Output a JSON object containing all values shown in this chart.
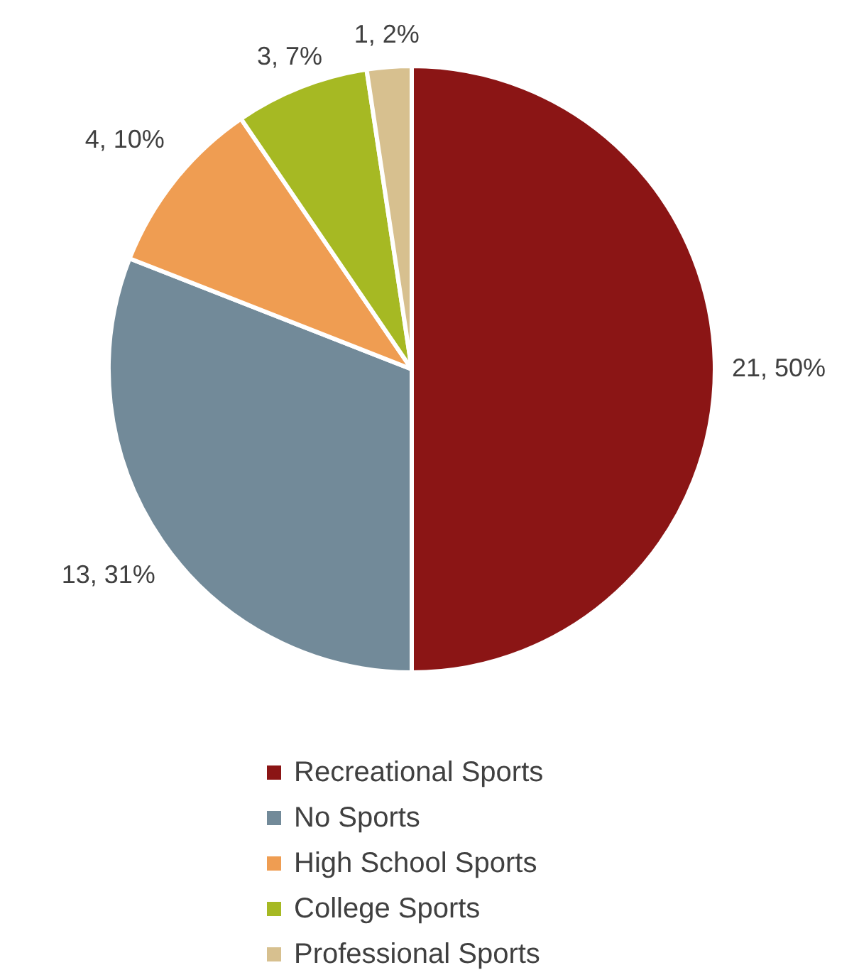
{
  "chart_data": {
    "type": "pie",
    "categories": [
      "Recreational Sports",
      "No Sports",
      "High School Sports",
      "College Sports",
      "Professional Sports"
    ],
    "values": [
      21,
      13,
      4,
      3,
      1
    ],
    "colors": [
      "#8b1515",
      "#728a99",
      "#ef9d52",
      "#a6b923",
      "#d7c08f"
    ],
    "value_labels": [
      "21, 50%",
      "13, 31%",
      "4, 10%",
      "3, 7%",
      "1, 2%"
    ],
    "legend": "bottom"
  }
}
